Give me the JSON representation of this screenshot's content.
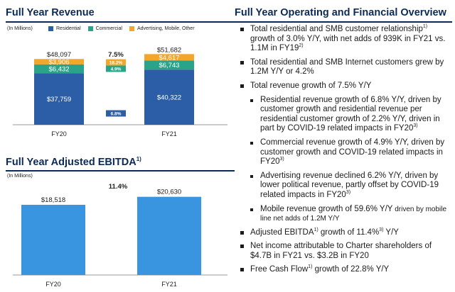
{
  "revenue_panel": {
    "title": "Full Year Revenue",
    "units": "(In Millions)",
    "legend": [
      {
        "label": "Residential",
        "color": "#2b5ea6"
      },
      {
        "label": "Commercial",
        "color": "#2aa488"
      },
      {
        "label": "Advertising, Mobile, Other",
        "color": "#f2a72b"
      }
    ]
  },
  "ebitda_panel": {
    "title": "Full Year Adjusted EBITDA",
    "title_sup": "1)",
    "units": "(In Millions)"
  },
  "overview": {
    "title": "Full Year Operating and Financial Overview",
    "items": [
      {
        "text": "Total residential and SMB customer relationship",
        "sup1": "1)",
        "text2": " growth of 3.0% Y/Y, with net adds of 939K in FY21 vs. 1.1M in FY19",
        "sup2": "2)",
        "level": 1
      },
      {
        "text": "Total residential and SMB Internet customers grew by 1.2M Y/Y or 4.2%",
        "level": 1
      },
      {
        "text": "Total revenue growth of 7.5% Y/Y",
        "level": 1
      },
      {
        "text": "Residential revenue growth of 6.8% Y/Y, driven by customer growth and residential revenue per residential customer growth of 2.2% Y/Y, driven in part by COVID-19 related impacts in FY20",
        "sup1": "3)",
        "level": 2
      },
      {
        "text": "Commercial revenue growth of 4.9% Y/Y, driven by customer growth and COVID-19 related impacts in FY20",
        "sup1": "3)",
        "level": 2
      },
      {
        "text": "Advertising revenue declined 6.2% Y/Y, driven by lower political revenue, partly offset by COVID-19 related impacts in FY20",
        "sup1": "3)",
        "level": 2
      },
      {
        "text": "Mobile revenue growth of 59.6% Y/Y",
        "text2": " driven by mobile line net adds of 1.2M Y/Y",
        "level": 2,
        "small_tail": true
      },
      {
        "text": "Adjusted EBITDA",
        "sup1": "1)",
        "text2": " growth of 11.4%",
        "sup2": "3)",
        "text3": " Y/Y",
        "level": 1
      },
      {
        "text": "Net income attributable to Charter shareholders of $4.7B in FY21 vs. $3.2B in FY20",
        "level": 1
      },
      {
        "text": "Free Cash Flow",
        "sup1": "1)",
        "text2": " growth of 22.8% Y/Y",
        "level": 1
      }
    ]
  },
  "chart_data": [
    {
      "type": "bar",
      "stacked": true,
      "title": "Full Year Revenue",
      "categories": [
        "FY20",
        "FY21"
      ],
      "series": [
        {
          "name": "Residential",
          "color": "#2b5ea6",
          "values": [
            37759,
            40322
          ],
          "labels": [
            "$37,759",
            "$40,322"
          ]
        },
        {
          "name": "Commercial",
          "color": "#2aa488",
          "values": [
            6432,
            6743
          ],
          "labels": [
            "$6,432",
            "$6,743"
          ]
        },
        {
          "name": "Advertising, Mobile, Other",
          "color": "#f2a72b",
          "values": [
            3906,
            4617
          ],
          "labels": [
            "$3,906",
            "$4,617"
          ]
        }
      ],
      "totals": [
        "$48,097",
        "$51,682"
      ],
      "total_values": [
        48097,
        51682
      ],
      "growth": {
        "total": "7.5%",
        "by_series": [
          "6.8%",
          "4.9%",
          "18.2%"
        ]
      },
      "ylim": [
        0,
        56000
      ],
      "grid": false,
      "legend_position": "top"
    },
    {
      "type": "bar",
      "title": "Full Year Adjusted EBITDA",
      "categories": [
        "FY20",
        "FY21"
      ],
      "series": [
        {
          "name": "",
          "color": "#3a95e0",
          "values": [
            18518,
            20630
          ],
          "labels": [
            "$18,518",
            "$20,630"
          ]
        }
      ],
      "growth": "11.4%",
      "ylim": [
        0,
        23000
      ],
      "grid": false
    }
  ]
}
